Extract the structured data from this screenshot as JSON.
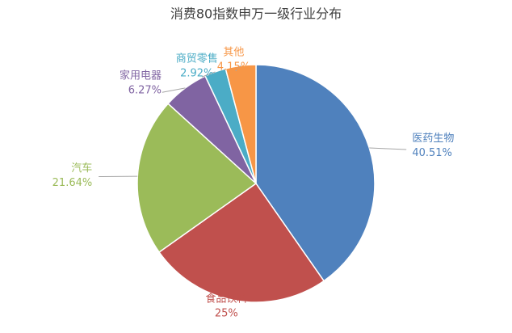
{
  "chart_data": {
    "type": "pie",
    "title": "消费80指数申万一级行业分布",
    "categories": [
      "医药生物",
      "食品饮料",
      "汽车",
      "家用电器",
      "商贸零售",
      "其他"
    ],
    "values": [
      40.51,
      25,
      21.64,
      6.27,
      2.92,
      4.15
    ],
    "value_labels": [
      "40.51%",
      "25%",
      "21.64%",
      "6.27%",
      "2.92%",
      "4.15%"
    ],
    "colors": [
      "#4f81bd",
      "#c0504d",
      "#9bbb59",
      "#8064a2",
      "#4bacc6",
      "#f79646"
    ]
  }
}
